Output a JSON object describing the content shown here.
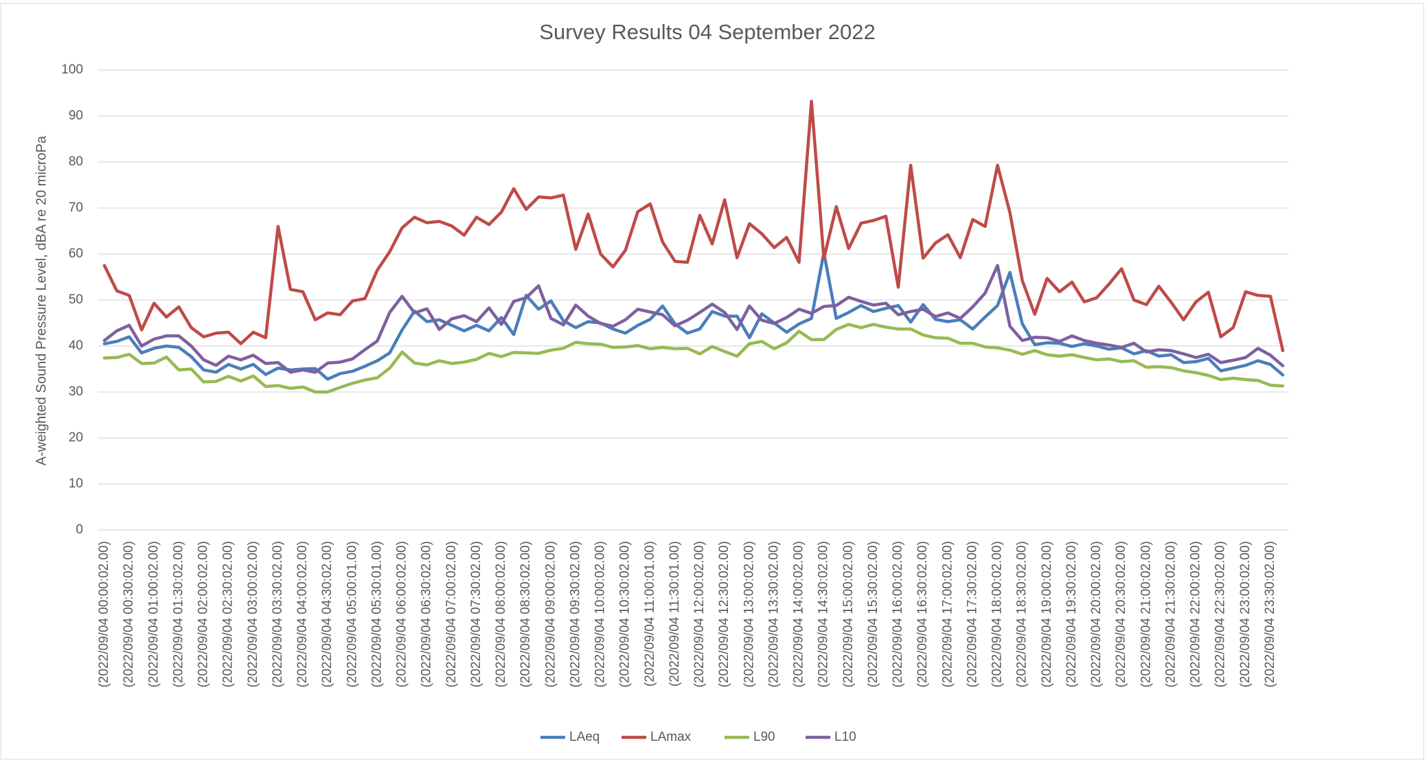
{
  "chart_data": {
    "type": "line",
    "title": "Survey Results 04 September 2022",
    "y_label": "A-weighted Sound Pressure Level, dBA re 20 microPa",
    "categories": [
      "(2022/09/04 00:00:02.00)",
      null,
      "(2022/09/04 00:30:02.00)",
      null,
      "(2022/09/04 01:00:02.00)",
      null,
      "(2022/09/04 01:30:02.00)",
      null,
      "(2022/09/04 02:00:02.00)",
      null,
      "(2022/09/04 02:30:02.00)",
      null,
      "(2022/09/04 03:00:02.00)",
      null,
      "(2022/09/04 03:30:02.00)",
      null,
      "(2022/09/04 04:00:02.00)",
      null,
      "(2022/09/04 04:30:02.00)",
      null,
      "(2022/09/04 05:00:01.00)",
      null,
      "(2022/09/04 05:30:01.00)",
      null,
      "(2022/09/04 06:00:02.00)",
      null,
      "(2022/09/04 06:30:02.00)",
      null,
      "(2022/09/04 07:00:02.00)",
      null,
      "(2022/09/04 07:30:02.00)",
      null,
      "(2022/09/04 08:00:02.00)",
      null,
      "(2022/09/04 08:30:02.00)",
      null,
      "(2022/09/04 09:00:02.00)",
      null,
      "(2022/09/04 09:30:02.00)",
      null,
      "(2022/09/04 10:00:02.00)",
      null,
      "(2022/09/04 10:30:02.00)",
      null,
      "(2022/09/04 11:00:01.00)",
      null,
      "(2022/09/04 11:30:01.00)",
      null,
      "(2022/09/04 12:00:02.00)",
      null,
      "(2022/09/04 12:30:02.00)",
      null,
      "(2022/09/04 13:00:02.00)",
      null,
      "(2022/09/04 13:30:02.00)",
      null,
      "(2022/09/04 14:00:02.00)",
      null,
      "(2022/09/04 14:30:02.00)",
      null,
      "(2022/09/04 15:00:02.00)",
      null,
      "(2022/09/04 15:30:02.00)",
      null,
      "(2022/09/04 16:00:02.00)",
      null,
      "(2022/09/04 16:30:02.00)",
      null,
      "(2022/09/04 17:00:02.00)",
      null,
      "(2022/09/04 17:30:02.00)",
      null,
      "(2022/09/04 18:00:02.00)",
      null,
      "(2022/09/04 18:30:02.00)",
      null,
      "(2022/09/04 19:00:02.00)",
      null,
      "(2022/09/04 19:30:02.00)",
      null,
      "(2022/09/04 20:00:02.00)",
      null,
      "(2022/09/04 20:30:02.00)",
      null,
      "(2022/09/04 21:00:02.00)",
      null,
      "(2022/09/04 21:30:02.00)",
      null,
      "(2022/09/04 22:00:02.00)",
      null,
      "(2022/09/04 22:30:02.00)",
      null,
      "(2022/09/04 23:00:02.00)",
      null,
      "(2022/09/04 23:30:02.00)",
      null
    ],
    "series": [
      {
        "name": "LAeq",
        "color": "#4a7ebb",
        "values": [
          40.5,
          41,
          42,
          38.5,
          39.5,
          40,
          39.7,
          37.7,
          34.8,
          34.3,
          36,
          35,
          36,
          33.8,
          35.2,
          34.8,
          35,
          35.1,
          32.8,
          34,
          34.5,
          35.6,
          36.8,
          38.5,
          43.5,
          47.6,
          45.3,
          45.7,
          44.5,
          43.3,
          44.5,
          43.3,
          46.2,
          42.5,
          51,
          48,
          49.8,
          45.5,
          44,
          45.3,
          45,
          43.7,
          42.8,
          44.5,
          45.8,
          48.7,
          44.8,
          42.8,
          43.7,
          47.5,
          46.5,
          46.5,
          41.8,
          47,
          45,
          43,
          44.8,
          46,
          60.3,
          46,
          47.3,
          48.8,
          47.5,
          48.2,
          48.8,
          45.2,
          49,
          45.8,
          45.3,
          45.7,
          43.7,
          46.3,
          48.8,
          56,
          44.8,
          40.3,
          40.7,
          40.6,
          39.9,
          40.5,
          40,
          39.3,
          39.6,
          38.3,
          39,
          37.8,
          38.1,
          36.4,
          36.6,
          37.3,
          34.6,
          35.2,
          35.8,
          36.8,
          36,
          33.7
        ]
      },
      {
        "name": "LAmax",
        "color": "#be4b48",
        "values": [
          57.5,
          52,
          51,
          43.5,
          49.3,
          46.3,
          48.5,
          44,
          42,
          42.8,
          43,
          40.5,
          43,
          41.8,
          66,
          52.3,
          51.8,
          45.7,
          47.2,
          46.8,
          49.8,
          50.3,
          56.5,
          60.5,
          65.7,
          68,
          66.8,
          67.1,
          66.1,
          64.1,
          68,
          66.4,
          69.1,
          74.2,
          69.7,
          72.4,
          72.2,
          72.8,
          61,
          68.7,
          60,
          57.2,
          60.8,
          69.2,
          70.9,
          62.6,
          58.4,
          58.2,
          68.4,
          62.2,
          71.8,
          59.2,
          66.6,
          64.4,
          61.4,
          63.6,
          58.2,
          93.2,
          59,
          70.3,
          61.2,
          66.7,
          67.3,
          68.2,
          52.8,
          79.3,
          59.1,
          62.4,
          64.2,
          59.2,
          67.5,
          66,
          79.3,
          69,
          54.2,
          46.9,
          54.7,
          51.8,
          53.9,
          49.6,
          50.5,
          53.5,
          56.8,
          50,
          49,
          53,
          49.5,
          45.7,
          49.6,
          51.7,
          42,
          44,
          51.8,
          51,
          50.8,
          39
        ]
      },
      {
        "name": "L90",
        "color": "#98b954",
        "values": [
          37.4,
          37.5,
          38.2,
          36.2,
          36.3,
          37.6,
          34.8,
          35,
          32.2,
          32.3,
          33.4,
          32.4,
          33.5,
          31.2,
          31.4,
          30.8,
          31.1,
          30,
          30,
          31,
          31.9,
          32.6,
          33.1,
          35.2,
          38.7,
          36.3,
          35.9,
          36.8,
          36.2,
          36.5,
          37.1,
          38.4,
          37.7,
          38.6,
          38.5,
          38.4,
          39.1,
          39.5,
          40.8,
          40.5,
          40.4,
          39.7,
          39.8,
          40.1,
          39.4,
          39.7,
          39.4,
          39.5,
          38.3,
          39.9,
          38.8,
          37.8,
          40.5,
          41,
          39.4,
          40.7,
          43.2,
          41.4,
          41.4,
          43.6,
          44.7,
          44,
          44.7,
          44.1,
          43.7,
          43.7,
          42.4,
          41.8,
          41.7,
          40.6,
          40.6,
          39.8,
          39.6,
          39.1,
          38.2,
          39,
          38.1,
          37.8,
          38.1,
          37.5,
          37,
          37.2,
          36.6,
          36.8,
          35.4,
          35.5,
          35.3,
          34.6,
          34.2,
          33.6,
          32.7,
          33,
          32.7,
          32.5,
          31.5,
          31.3
        ]
      },
      {
        "name": "L10",
        "color": "#7d60a0",
        "values": [
          41.2,
          43.3,
          44.5,
          40,
          41.5,
          42.2,
          42.2,
          40,
          37,
          35.8,
          37.8,
          37,
          38,
          36.2,
          36.4,
          34.3,
          34.8,
          34.3,
          36.3,
          36.5,
          37.2,
          39.2,
          41.1,
          47.3,
          50.8,
          47.2,
          48.1,
          43.6,
          45.9,
          46.6,
          45.3,
          48.3,
          44.7,
          49.7,
          50.5,
          53.1,
          46,
          44.6,
          48.9,
          46.5,
          44.9,
          44.3,
          45.7,
          48,
          47.4,
          46.8,
          44.4,
          45.6,
          47.3,
          49.1,
          47.3,
          43.6,
          48.7,
          45.6,
          44.9,
          46.2,
          48,
          47.1,
          48.6,
          48.8,
          50.6,
          49.7,
          48.9,
          49.3,
          46.8,
          47.5,
          48,
          46.4,
          47.2,
          46,
          48.5,
          51.5,
          57.5,
          44.3,
          41.2,
          41.9,
          41.8,
          41,
          42.2,
          41.2,
          40.6,
          40.2,
          39.7,
          40.6,
          38.7,
          39.2,
          39,
          38.3,
          37.5,
          38.2,
          36.4,
          36.9,
          37.5,
          39.5,
          38,
          35.7
        ]
      }
    ],
    "ylim": [
      0,
      100
    ],
    "yticks": [
      0,
      10,
      20,
      30,
      40,
      50,
      60,
      70,
      80,
      90,
      100
    ],
    "grid": true,
    "legend": "bottom"
  }
}
